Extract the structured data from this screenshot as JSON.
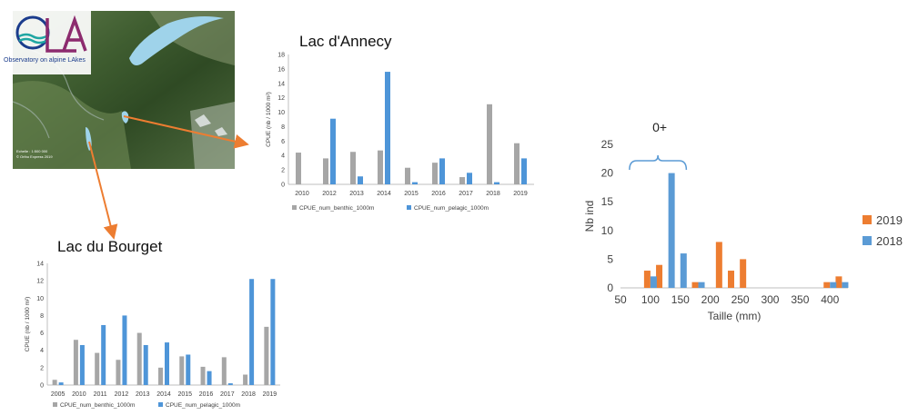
{
  "logo": {
    "text": "OLA",
    "caption": "Observatory on alpine LAkes"
  },
  "map": {
    "scale_lines": [
      "Echelle : 1:500 000",
      "© Ortho Express 2019"
    ]
  },
  "chart_data": [
    {
      "type": "bar",
      "title": "Lac d'Annecy",
      "xlabel": "",
      "ylabel": "CPUE (nb / 1000 m²)",
      "ylim": [
        0,
        18
      ],
      "yticks": [
        0,
        2,
        4,
        6,
        8,
        10,
        12,
        14,
        16,
        18
      ],
      "categories": [
        "2010",
        "2012",
        "2013",
        "2014",
        "2015",
        "2016",
        "2017",
        "2018",
        "2019"
      ],
      "series": [
        {
          "name": "CPUE_num_benthic_1000m",
          "values": [
            4.4,
            3.6,
            4.5,
            4.7,
            2.3,
            3.0,
            1.0,
            11.1,
            5.7
          ],
          "color": "#a6a6a6"
        },
        {
          "name": "CPUE_num_pelagic_1000m",
          "values": [
            0.0,
            9.1,
            1.1,
            15.6,
            0.3,
            3.6,
            1.6,
            0.3,
            3.6
          ],
          "color": "#4e95d8"
        }
      ],
      "grid": false,
      "legend": "bottom"
    },
    {
      "type": "bar",
      "title": "Lac du Bourget",
      "xlabel": "",
      "ylabel": "CPUE (nb / 1000 m²)",
      "ylim": [
        0,
        14
      ],
      "yticks": [
        0,
        2,
        4,
        6,
        8,
        10,
        12,
        14
      ],
      "categories": [
        "2005",
        "2010",
        "2011",
        "2012",
        "2013",
        "2014",
        "2015",
        "2016",
        "2017",
        "2018",
        "2019"
      ],
      "series": [
        {
          "name": "CPUE_num_benthic_1000m",
          "values": [
            0.6,
            5.2,
            3.7,
            2.9,
            6.0,
            2.0,
            3.3,
            2.1,
            3.2,
            1.2,
            6.7
          ],
          "color": "#a6a6a6"
        },
        {
          "name": "CPUE_num_pelagic_1000m",
          "values": [
            0.3,
            4.6,
            6.9,
            8.0,
            4.6,
            4.9,
            3.5,
            1.6,
            0.2,
            12.2,
            12.2
          ],
          "color": "#4e95d8"
        }
      ],
      "grid": false,
      "legend": "bottom"
    },
    {
      "type": "bar",
      "title": "",
      "xlabel": "Taille  (mm)",
      "ylabel": "Nb ind",
      "xlim": [
        50,
        430
      ],
      "ylim": [
        0,
        25
      ],
      "xticks": [
        50,
        100,
        150,
        200,
        250,
        300,
        350,
        400
      ],
      "yticks": [
        0,
        5,
        10,
        15,
        20,
        25
      ],
      "annotation": {
        "text": "0+",
        "x_range": [
          65,
          160
        ]
      },
      "series": [
        {
          "name": "2019",
          "color": "#ed7d31",
          "x": [
            100,
            120,
            180,
            220,
            240,
            260,
            400,
            420
          ],
          "values": [
            3,
            4,
            1,
            8,
            3,
            5,
            1,
            2
          ]
        },
        {
          "name": "2018",
          "color": "#5b9bd5",
          "x": [
            100,
            130,
            150,
            180,
            400,
            420
          ],
          "values": [
            2,
            20,
            6,
            1,
            1,
            1
          ]
        }
      ],
      "grid": false,
      "legend": "right"
    }
  ]
}
